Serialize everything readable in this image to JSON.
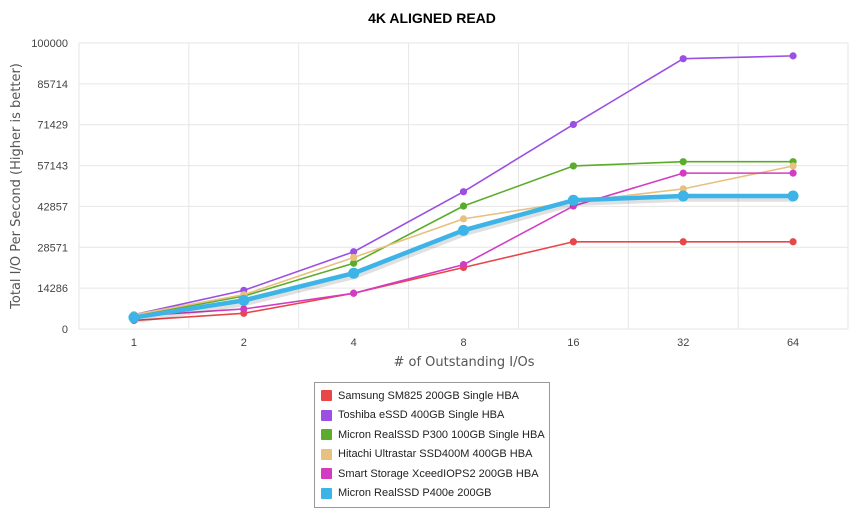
{
  "chart_data": {
    "type": "line",
    "title": "4K ALIGNED READ",
    "xlabel": "# of Outstanding I/Os",
    "ylabel": "Total I/O Per Second (Higher is better)",
    "categories": [
      "1",
      "2",
      "4",
      "8",
      "16",
      "32",
      "64"
    ],
    "yticks": [
      "0",
      "14286",
      "28571",
      "42857",
      "57143",
      "71429",
      "85714",
      "100000"
    ],
    "ylim": [
      0,
      100000
    ],
    "grid": true,
    "legend_position": "bottom",
    "series": [
      {
        "name": "Samsung SM825 200GB Single HBA",
        "color": "#e8474a",
        "highlight": false,
        "values": [
          3000,
          5500,
          12500,
          21500,
          30500,
          30500,
          30500
        ]
      },
      {
        "name": "Toshiba eSSD 400GB Single HBA",
        "color": "#9b4fe3",
        "highlight": false,
        "values": [
          5000,
          13500,
          27000,
          48000,
          71500,
          94500,
          95500
        ]
      },
      {
        "name": "Micron RealSSD P300 100GB Single HBA",
        "color": "#5aac2a",
        "highlight": false,
        "values": [
          4500,
          11500,
          23000,
          43000,
          57000,
          58500,
          58500
        ]
      },
      {
        "name": "Hitachi Ultrastar SSD400M 400GB HBA",
        "color": "#e8c07f",
        "highlight": false,
        "values": [
          5000,
          12000,
          25000,
          38500,
          44500,
          49000,
          57000
        ]
      },
      {
        "name": "Smart Storage XceedIOPS2 200GB HBA",
        "color": "#d33cc2",
        "highlight": false,
        "values": [
          4500,
          7000,
          12500,
          22500,
          43000,
          54500,
          54500
        ]
      },
      {
        "name": "Micron RealSSD P400e 200GB",
        "color": "#3db4e8",
        "highlight": true,
        "values": [
          4000,
          10000,
          19500,
          34500,
          45000,
          46500,
          46500
        ]
      }
    ]
  }
}
